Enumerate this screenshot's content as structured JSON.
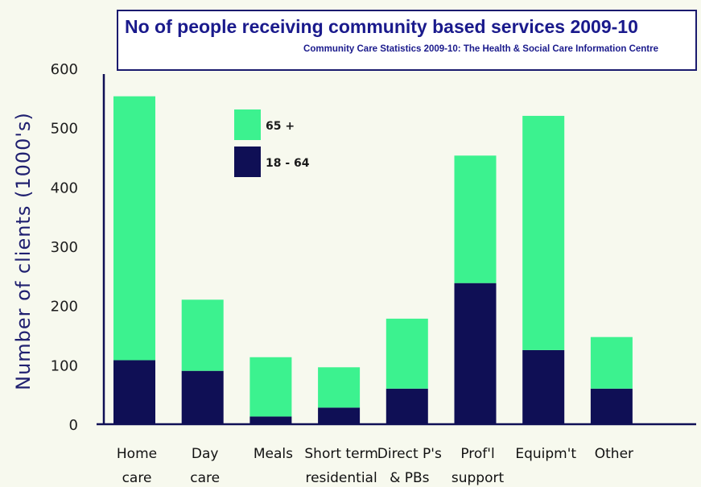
{
  "chart_data": {
    "type": "bar",
    "stacked": true,
    "title": "No of people receiving community based services 2009-10",
    "subtitle": "Community Care Statistics 2009-10: The Health & Social Care Information Centre",
    "ylabel": "Number of clients   (1000's)",
    "xlabel": "",
    "ylim": [
      0,
      600
    ],
    "yticks": [
      "0",
      "100",
      "200",
      "300",
      "400",
      "500",
      "600"
    ],
    "categories": [
      [
        "Home",
        "care"
      ],
      [
        "Day",
        "care"
      ],
      [
        "Meals"
      ],
      [
        "Short term",
        "residential"
      ],
      [
        "Direct P's",
        "& PBs"
      ],
      [
        "Prof'l",
        "support"
      ],
      [
        "Equipm't"
      ],
      [
        "Other"
      ]
    ],
    "series": [
      {
        "name": "18 - 64",
        "color": "#0f0f55",
        "values": [
          108,
          90,
          13,
          28,
          60,
          238,
          125,
          60
        ]
      },
      {
        "name": "65 +",
        "color": "#3cf28f",
        "values": [
          445,
          120,
          100,
          68,
          118,
          215,
          395,
          87
        ]
      }
    ],
    "legend_position": "top-left inside plot",
    "grid": false
  }
}
